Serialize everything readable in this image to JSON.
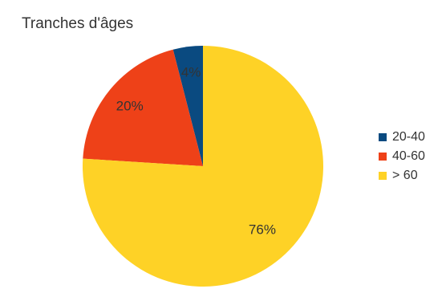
{
  "chart_data": {
    "type": "pie",
    "title": "Tranches d'âges",
    "categories": [
      "20-40",
      "40-60",
      "> 60"
    ],
    "values": [
      4,
      20,
      76
    ],
    "labels": [
      "4%",
      "20%",
      "76%"
    ],
    "colors": [
      "#0a4a80",
      "#ee4118",
      "#fed226"
    ],
    "legend_position": "right"
  }
}
